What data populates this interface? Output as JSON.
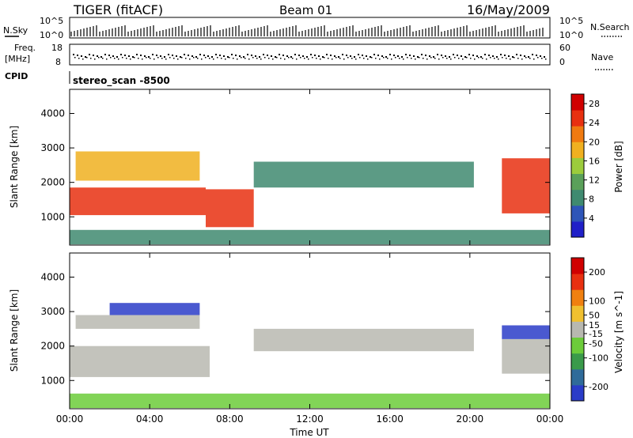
{
  "header": {
    "station": "TIGER (fitACF)",
    "beam": "Beam 01",
    "date": "16/May/2009"
  },
  "top_panels": {
    "nsky_label": "N.Sky",
    "nsky_ticks": [
      "10^5",
      "10^0"
    ],
    "nsearch_label": "N.Search",
    "nsearch_ticks": [
      "10^5",
      "10^0"
    ],
    "freq_label_line1": "Freq.",
    "freq_label_line2": "[MHz]",
    "freq_ticks": [
      "18",
      "8"
    ],
    "nave_label": "Nave",
    "nave_ticks": [
      "60",
      "0"
    ],
    "cpid_label": "CPID",
    "cpid_value": "stereo_scan -8500"
  },
  "colors": {
    "power": [
      "#2020c8",
      "#2e55b8",
      "#3f8a70",
      "#5aa05a",
      "#9ccc3c",
      "#f0b020",
      "#f07a10",
      "#e83010",
      "#d00000"
    ],
    "velocity": [
      "#2a3cc8",
      "#2f6b9a",
      "#3a9a4a",
      "#6ccc3a",
      "#b8b8b0",
      "#f0c030",
      "#f08010",
      "#e83010",
      "#d00000"
    ]
  },
  "chart_data": [
    {
      "type": "heatmap",
      "title": "",
      "xlabel": "Time UT",
      "ylabel": "Slant Range [km]",
      "x_ticks": [
        "00:00",
        "04:00",
        "08:00",
        "12:00",
        "16:00",
        "20:00",
        "00:00"
      ],
      "x_range_hours": [
        0,
        24
      ],
      "y_ticks": [
        1000,
        2000,
        3000,
        4000
      ],
      "ylim": [
        180,
        4700
      ],
      "colorbar": {
        "label": "Power [dB]",
        "ticks": [
          4,
          8,
          12,
          16,
          20,
          24,
          28
        ],
        "range": [
          0,
          30
        ]
      },
      "bands": [
        {
          "name": "ground-scatter",
          "x": [
            0,
            24
          ],
          "y": [
            200,
            620
          ],
          "value": 8
        },
        {
          "name": "main-echo",
          "x": [
            0,
            6.8
          ],
          "y": [
            1050,
            1850
          ],
          "value": 26
        },
        {
          "name": "upper-echo",
          "x": [
            0.3,
            6.5
          ],
          "y": [
            2050,
            2900
          ],
          "value": 18
        },
        {
          "name": "evening-drop",
          "x": [
            6.8,
            9.2
          ],
          "y": [
            700,
            1800
          ],
          "value": 24
        },
        {
          "name": "weak-band",
          "x": [
            9.2,
            20.2
          ],
          "y": [
            1850,
            2600
          ],
          "value": 8
        },
        {
          "name": "night-echo",
          "x": [
            21.6,
            24
          ],
          "y": [
            1100,
            2700
          ],
          "value": 24
        }
      ]
    },
    {
      "type": "heatmap",
      "title": "",
      "xlabel": "Time UT",
      "ylabel": "Slant Range [km]",
      "x_ticks": [
        "00:00",
        "04:00",
        "08:00",
        "12:00",
        "16:00",
        "20:00",
        "00:00"
      ],
      "x_range_hours": [
        0,
        24
      ],
      "y_ticks": [
        1000,
        2000,
        3000,
        4000
      ],
      "ylim": [
        180,
        4700
      ],
      "colorbar": {
        "label": "Velocity [m s^-1]",
        "ticks": [
          200,
          100,
          50,
          15,
          -15,
          -50,
          -100,
          -200
        ],
        "range": [
          -250,
          250
        ]
      },
      "bands": [
        {
          "name": "ground-scatter",
          "x": [
            0,
            24
          ],
          "y": [
            200,
            620
          ],
          "value": -60
        },
        {
          "name": "main-echo",
          "x": [
            0,
            7
          ],
          "y": [
            1100,
            2000
          ],
          "value": 0
        },
        {
          "name": "upper-echo",
          "x": [
            0.3,
            6.5
          ],
          "y": [
            2500,
            2900
          ],
          "value": 0
        },
        {
          "name": "high-echo",
          "x": [
            2,
            6.5
          ],
          "y": [
            2900,
            3250
          ],
          "value": -200
        },
        {
          "name": "weak-band",
          "x": [
            9.2,
            20.2
          ],
          "y": [
            1850,
            2500
          ],
          "value": 0
        },
        {
          "name": "night-echo",
          "x": [
            21.6,
            24
          ],
          "y": [
            2200,
            2600
          ],
          "value": -200
        },
        {
          "name": "night-lower",
          "x": [
            21.6,
            24
          ],
          "y": [
            1200,
            2200
          ],
          "value": 0
        }
      ]
    }
  ]
}
